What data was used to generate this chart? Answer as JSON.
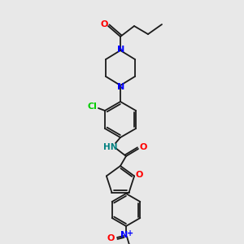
{
  "bg_color": "#e8e8e8",
  "bond_color": "#1a1a1a",
  "bond_width": 1.3,
  "colors": {
    "O": "#ff0000",
    "N": "#0000ff",
    "Cl": "#00cc00",
    "N_amide": "#008080",
    "N_plus": "#0000ff",
    "O_minus": "#ff0000"
  },
  "font_size": 8.0
}
